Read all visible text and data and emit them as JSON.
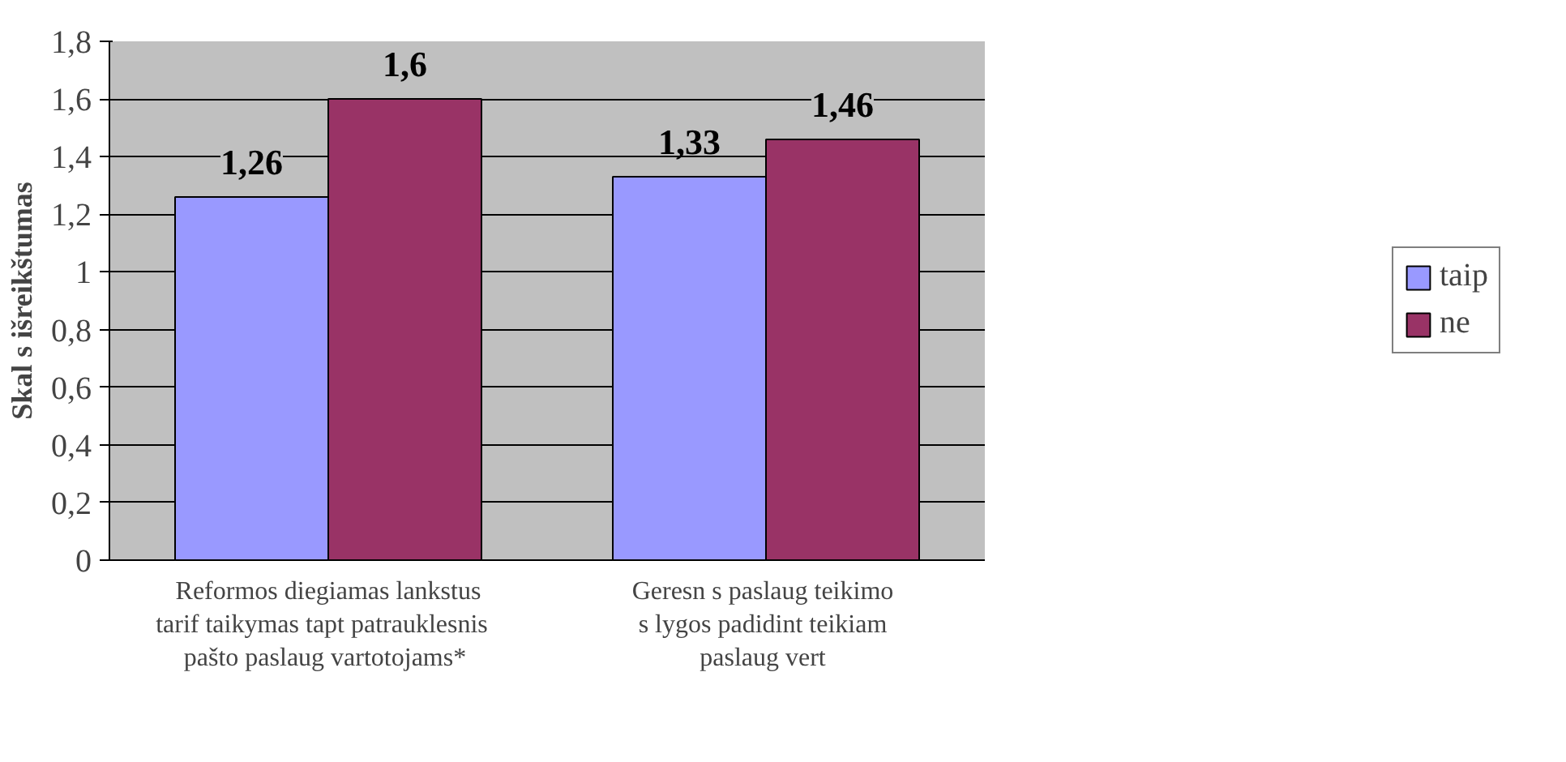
{
  "chart_data": {
    "type": "bar",
    "ylabel": "Skal s išreikštumas",
    "categories": [
      "Reformos diegiamas lankstus\ntarif  taikymas tapt  patrauklesnis\npašto paslaug  vartotojams*",
      "Geresn s paslaug  teikimo\ns lygos padidint  teikiam\npaslaug  vert"
    ],
    "series": [
      {
        "name": "taip",
        "color": "#9999ff",
        "values": [
          1.26,
          1.33
        ],
        "value_labels": [
          "1,26",
          "1,33"
        ]
      },
      {
        "name": "ne",
        "color": "#993366",
        "values": [
          1.6,
          1.46
        ],
        "value_labels": [
          "1,6",
          "1,46"
        ]
      }
    ],
    "ylim": [
      0,
      1.8
    ],
    "yticks": [
      0,
      {
        "value": 0.2,
        "label": "0,2"
      },
      {
        "value": 0.4,
        "label": "0,4"
      },
      {
        "value": 0.6,
        "label": "0,6"
      },
      {
        "value": 0.8,
        "label": "0,8"
      },
      1,
      {
        "value": 1.2,
        "label": "1,2"
      },
      {
        "value": 1.4,
        "label": "1,4"
      },
      {
        "value": 1.6,
        "label": "1,6"
      },
      {
        "value": 1.8,
        "label": "1,8"
      }
    ],
    "grid": "y",
    "legend": "right"
  }
}
